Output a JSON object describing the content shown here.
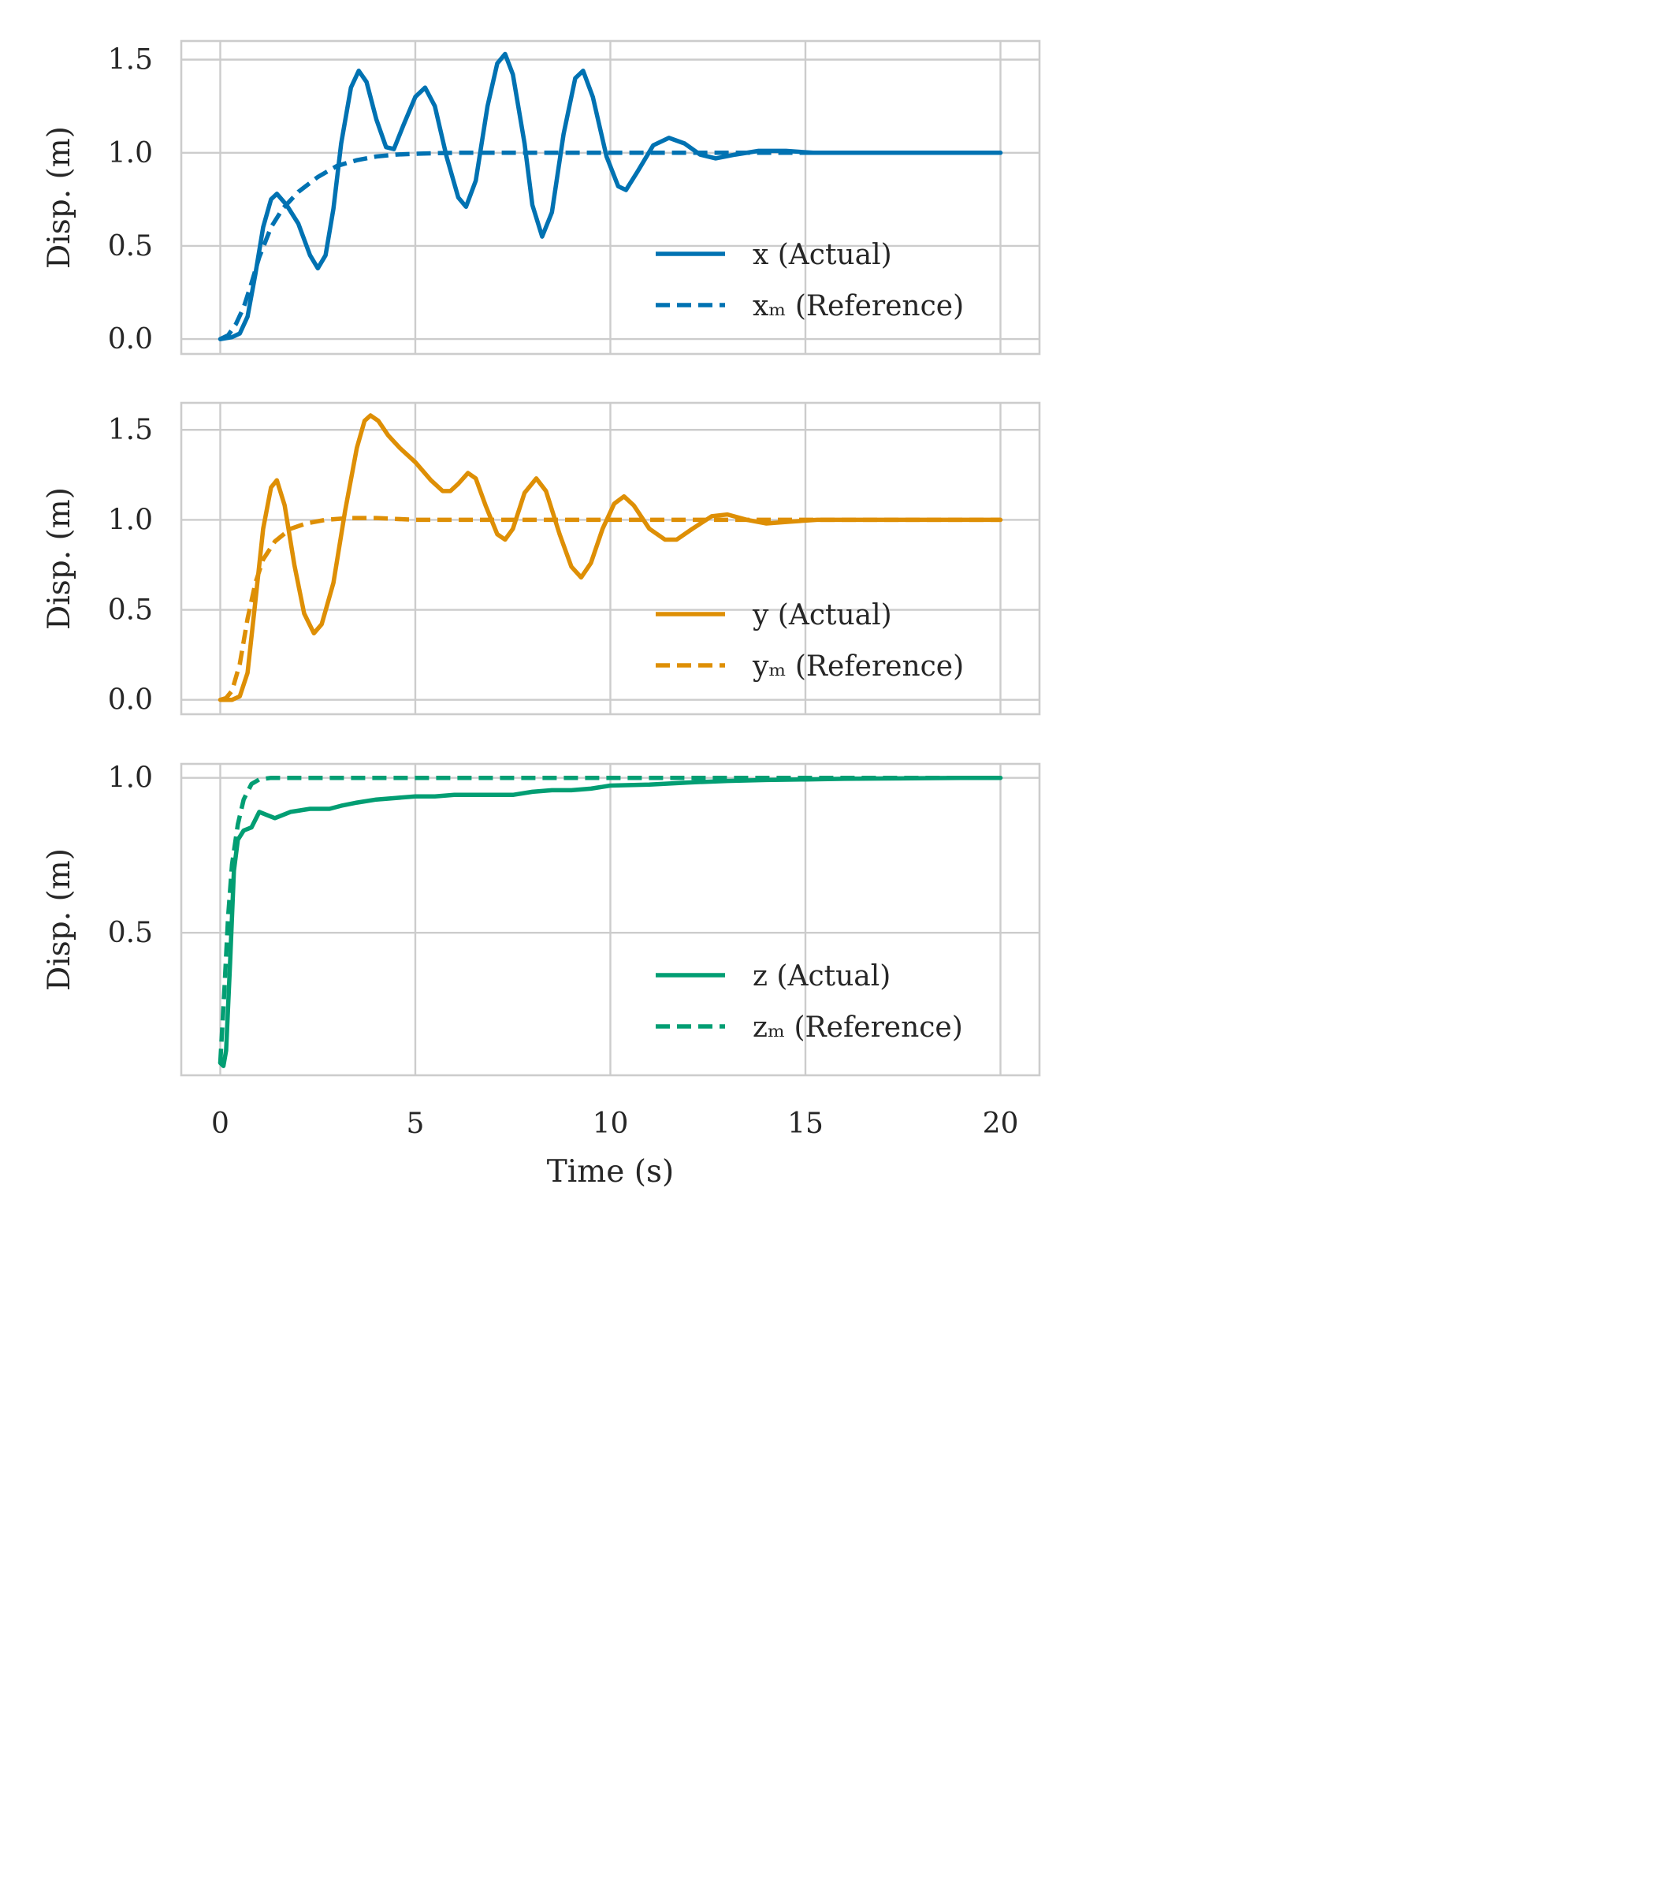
{
  "chart_data": [
    {
      "type": "line",
      "title": "",
      "xlabel": "",
      "ylabel": "Disp. (m)",
      "xlim": [
        -1,
        21
      ],
      "ylim": [
        -0.08,
        1.6
      ],
      "xticks": [
        0,
        5,
        10,
        15,
        20
      ],
      "xticklabels_visible": false,
      "yticks": [
        0.0,
        0.5,
        1.0,
        1.5
      ],
      "ytick_labels": [
        "0.0",
        "0.5",
        "1.0",
        "1.5"
      ],
      "grid": true,
      "legend_position": "lower right",
      "series": [
        {
          "name": "x (Actual)",
          "color": "#0072b2",
          "style": "solid",
          "points": [
            [
              0,
              0
            ],
            [
              0.3,
              0.01
            ],
            [
              0.5,
              0.03
            ],
            [
              0.7,
              0.12
            ],
            [
              0.9,
              0.35
            ],
            [
              1.1,
              0.6
            ],
            [
              1.3,
              0.75
            ],
            [
              1.45,
              0.78
            ],
            [
              1.7,
              0.72
            ],
            [
              2.0,
              0.62
            ],
            [
              2.3,
              0.45
            ],
            [
              2.5,
              0.38
            ],
            [
              2.7,
              0.45
            ],
            [
              2.9,
              0.7
            ],
            [
              3.1,
              1.05
            ],
            [
              3.35,
              1.35
            ],
            [
              3.55,
              1.44
            ],
            [
              3.75,
              1.38
            ],
            [
              4.0,
              1.18
            ],
            [
              4.25,
              1.03
            ],
            [
              4.45,
              1.02
            ],
            [
              4.7,
              1.15
            ],
            [
              5.0,
              1.3
            ],
            [
              5.25,
              1.35
            ],
            [
              5.5,
              1.25
            ],
            [
              5.8,
              0.98
            ],
            [
              6.1,
              0.76
            ],
            [
              6.3,
              0.71
            ],
            [
              6.55,
              0.85
            ],
            [
              6.85,
              1.25
            ],
            [
              7.1,
              1.48
            ],
            [
              7.3,
              1.53
            ],
            [
              7.5,
              1.42
            ],
            [
              7.8,
              1.05
            ],
            [
              8.0,
              0.72
            ],
            [
              8.25,
              0.55
            ],
            [
              8.5,
              0.68
            ],
            [
              8.8,
              1.1
            ],
            [
              9.1,
              1.4
            ],
            [
              9.3,
              1.44
            ],
            [
              9.55,
              1.3
            ],
            [
              9.9,
              0.98
            ],
            [
              10.2,
              0.82
            ],
            [
              10.4,
              0.8
            ],
            [
              10.7,
              0.9
            ],
            [
              11.1,
              1.04
            ],
            [
              11.5,
              1.08
            ],
            [
              11.9,
              1.05
            ],
            [
              12.3,
              0.99
            ],
            [
              12.7,
              0.97
            ],
            [
              13.2,
              0.99
            ],
            [
              13.8,
              1.01
            ],
            [
              14.5,
              1.01
            ],
            [
              15.2,
              1.0
            ],
            [
              16.0,
              1.0
            ],
            [
              17.0,
              1.0
            ],
            [
              18.0,
              1.0
            ],
            [
              19.0,
              1.0
            ],
            [
              20.0,
              1.0
            ]
          ]
        },
        {
          "name": "xₘ (Reference)",
          "color": "#0072b2",
          "style": "dashed",
          "points": [
            [
              0,
              0
            ],
            [
              0.2,
              0.02
            ],
            [
              0.4,
              0.08
            ],
            [
              0.6,
              0.17
            ],
            [
              0.8,
              0.3
            ],
            [
              1.0,
              0.44
            ],
            [
              1.3,
              0.6
            ],
            [
              1.6,
              0.7
            ],
            [
              2.0,
              0.79
            ],
            [
              2.5,
              0.87
            ],
            [
              3.0,
              0.93
            ],
            [
              3.5,
              0.96
            ],
            [
              4.0,
              0.98
            ],
            [
              4.5,
              0.99
            ],
            [
              5.0,
              0.995
            ],
            [
              6.0,
              1.0
            ],
            [
              8.0,
              1.0
            ],
            [
              10.0,
              1.0
            ],
            [
              14.0,
              1.0
            ],
            [
              20.0,
              1.0
            ]
          ]
        }
      ]
    },
    {
      "type": "line",
      "title": "",
      "xlabel": "",
      "ylabel": "Disp. (m)",
      "xlim": [
        -1,
        21
      ],
      "ylim": [
        -0.08,
        1.65
      ],
      "xticks": [
        0,
        5,
        10,
        15,
        20
      ],
      "xticklabels_visible": false,
      "yticks": [
        0.0,
        0.5,
        1.0,
        1.5
      ],
      "ytick_labels": [
        "0.0",
        "0.5",
        "1.0",
        "1.5"
      ],
      "grid": true,
      "legend_position": "lower right",
      "series": [
        {
          "name": "y (Actual)",
          "color": "#de8f05",
          "style": "solid",
          "points": [
            [
              0,
              0
            ],
            [
              0.3,
              0.0
            ],
            [
              0.5,
              0.02
            ],
            [
              0.7,
              0.15
            ],
            [
              0.9,
              0.55
            ],
            [
              1.1,
              0.95
            ],
            [
              1.3,
              1.18
            ],
            [
              1.45,
              1.22
            ],
            [
              1.65,
              1.08
            ],
            [
              1.9,
              0.75
            ],
            [
              2.15,
              0.48
            ],
            [
              2.4,
              0.37
            ],
            [
              2.6,
              0.42
            ],
            [
              2.9,
              0.65
            ],
            [
              3.2,
              1.05
            ],
            [
              3.5,
              1.4
            ],
            [
              3.7,
              1.55
            ],
            [
              3.85,
              1.58
            ],
            [
              4.05,
              1.55
            ],
            [
              4.3,
              1.47
            ],
            [
              4.6,
              1.4
            ],
            [
              5.0,
              1.32
            ],
            [
              5.4,
              1.22
            ],
            [
              5.7,
              1.16
            ],
            [
              5.9,
              1.16
            ],
            [
              6.1,
              1.2
            ],
            [
              6.35,
              1.26
            ],
            [
              6.55,
              1.23
            ],
            [
              6.8,
              1.08
            ],
            [
              7.1,
              0.92
            ],
            [
              7.3,
              0.89
            ],
            [
              7.5,
              0.95
            ],
            [
              7.8,
              1.15
            ],
            [
              8.1,
              1.23
            ],
            [
              8.35,
              1.16
            ],
            [
              8.7,
              0.92
            ],
            [
              9.0,
              0.74
            ],
            [
              9.25,
              0.68
            ],
            [
              9.5,
              0.76
            ],
            [
              9.8,
              0.95
            ],
            [
              10.1,
              1.09
            ],
            [
              10.35,
              1.13
            ],
            [
              10.6,
              1.08
            ],
            [
              11.0,
              0.95
            ],
            [
              11.4,
              0.89
            ],
            [
              11.7,
              0.89
            ],
            [
              12.1,
              0.95
            ],
            [
              12.6,
              1.02
            ],
            [
              13.0,
              1.03
            ],
            [
              13.5,
              1.0
            ],
            [
              14.0,
              0.98
            ],
            [
              14.6,
              0.99
            ],
            [
              15.3,
              1.0
            ],
            [
              16.0,
              1.0
            ],
            [
              17.0,
              1.0
            ],
            [
              18.0,
              1.0
            ],
            [
              19.0,
              1.0
            ],
            [
              20.0,
              1.0
            ]
          ]
        },
        {
          "name": "yₘ (Reference)",
          "color": "#de8f05",
          "style": "dashed",
          "points": [
            [
              0,
              0
            ],
            [
              0.15,
              0.01
            ],
            [
              0.3,
              0.05
            ],
            [
              0.5,
              0.2
            ],
            [
              0.7,
              0.45
            ],
            [
              0.9,
              0.65
            ],
            [
              1.1,
              0.78
            ],
            [
              1.4,
              0.88
            ],
            [
              1.8,
              0.95
            ],
            [
              2.2,
              0.98
            ],
            [
              2.7,
              1.0
            ],
            [
              3.3,
              1.01
            ],
            [
              4.0,
              1.01
            ],
            [
              5.0,
              1.0
            ],
            [
              7.0,
              1.0
            ],
            [
              10.0,
              1.0
            ],
            [
              14.0,
              1.0
            ],
            [
              20.0,
              1.0
            ]
          ]
        }
      ]
    },
    {
      "type": "line",
      "title": "",
      "xlabel": "Time (s)",
      "ylabel": "Disp. (m)",
      "xlim": [
        -1,
        21
      ],
      "ylim": [
        0.04,
        1.045
      ],
      "xticks": [
        0,
        5,
        10,
        15,
        20
      ],
      "xtick_labels": [
        "0",
        "5",
        "10",
        "15",
        "20"
      ],
      "yticks": [
        0.5,
        1.0
      ],
      "ytick_labels": [
        "0.5",
        "1.0"
      ],
      "grid": true,
      "legend_position": "lower right",
      "series": [
        {
          "name": "z (Actual)",
          "color": "#029e73",
          "style": "solid",
          "points": [
            [
              0,
              0.08
            ],
            [
              0.08,
              0.07
            ],
            [
              0.15,
              0.12
            ],
            [
              0.25,
              0.4
            ],
            [
              0.35,
              0.7
            ],
            [
              0.45,
              0.8
            ],
            [
              0.6,
              0.83
            ],
            [
              0.8,
              0.84
            ],
            [
              1.0,
              0.89
            ],
            [
              1.2,
              0.88
            ],
            [
              1.4,
              0.87
            ],
            [
              1.8,
              0.89
            ],
            [
              2.3,
              0.9
            ],
            [
              2.8,
              0.9
            ],
            [
              3.1,
              0.91
            ],
            [
              3.5,
              0.92
            ],
            [
              4.0,
              0.93
            ],
            [
              4.5,
              0.935
            ],
            [
              5.0,
              0.94
            ],
            [
              5.5,
              0.94
            ],
            [
              6.0,
              0.945
            ],
            [
              6.5,
              0.945
            ],
            [
              7.0,
              0.945
            ],
            [
              7.5,
              0.945
            ],
            [
              8.0,
              0.955
            ],
            [
              8.5,
              0.96
            ],
            [
              9.0,
              0.96
            ],
            [
              9.5,
              0.965
            ],
            [
              10.0,
              0.975
            ],
            [
              11.0,
              0.978
            ],
            [
              12.0,
              0.985
            ],
            [
              13.0,
              0.99
            ],
            [
              14.0,
              0.993
            ],
            [
              15.0,
              0.995
            ],
            [
              16.0,
              0.997
            ],
            [
              17.0,
              0.998
            ],
            [
              18.0,
              0.999
            ],
            [
              19.0,
              1.0
            ],
            [
              20.0,
              1.0
            ]
          ]
        },
        {
          "name": "zₘ (Reference)",
          "color": "#029e73",
          "style": "dashed",
          "points": [
            [
              0,
              0.08
            ],
            [
              0.1,
              0.3
            ],
            [
              0.2,
              0.55
            ],
            [
              0.3,
              0.72
            ],
            [
              0.45,
              0.85
            ],
            [
              0.6,
              0.93
            ],
            [
              0.8,
              0.98
            ],
            [
              1.0,
              0.995
            ],
            [
              1.3,
              1.0
            ],
            [
              2.0,
              1.0
            ],
            [
              5.0,
              1.0
            ],
            [
              10.0,
              1.0
            ],
            [
              15.0,
              1.0
            ],
            [
              20.0,
              1.0
            ]
          ]
        }
      ]
    }
  ]
}
